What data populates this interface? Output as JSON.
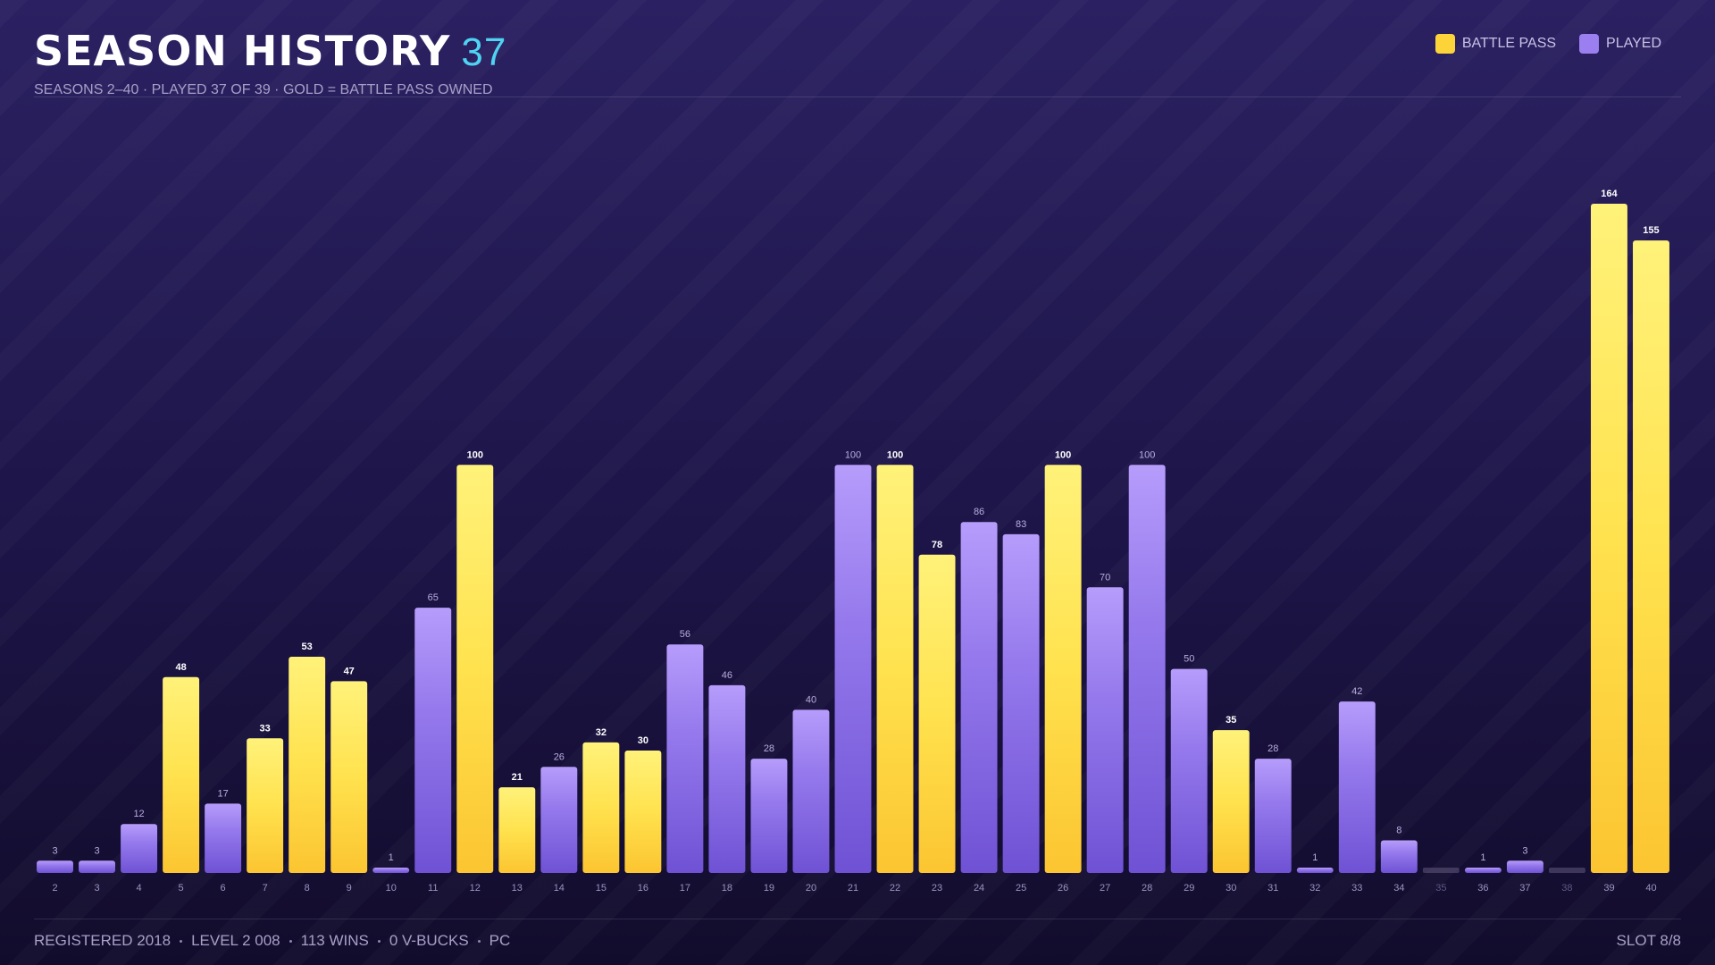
{
  "chart_data": {
    "type": "bar",
    "title": "SEASON HISTORY",
    "title_value": 37,
    "subtitle": "SEASONS 2–40 · PLAYED 37 OF 39 · GOLD = BATTLE PASS OWNED",
    "legend": [
      {
        "name": "BATTLE PASS",
        "color": "#fcd43a"
      },
      {
        "name": "PLAYED",
        "color": "#9b7ff0"
      }
    ],
    "categories": [
      "2",
      "3",
      "4",
      "5",
      "6",
      "7",
      "8",
      "9",
      "10",
      "11",
      "12",
      "13",
      "14",
      "15",
      "16",
      "17",
      "18",
      "19",
      "20",
      "21",
      "22",
      "23",
      "24",
      "25",
      "26",
      "27",
      "28",
      "29",
      "30",
      "31",
      "32",
      "33",
      "34",
      "35",
      "36",
      "37",
      "38",
      "39",
      "40"
    ],
    "values": [
      3,
      3,
      12,
      48,
      17,
      33,
      53,
      47,
      1,
      65,
      100,
      21,
      26,
      32,
      30,
      56,
      46,
      28,
      40,
      100,
      100,
      78,
      86,
      83,
      100,
      70,
      100,
      50,
      35,
      28,
      1,
      42,
      8,
      null,
      1,
      3,
      null,
      164,
      155
    ],
    "battle_pass": [
      false,
      false,
      false,
      true,
      false,
      true,
      true,
      true,
      false,
      false,
      true,
      true,
      false,
      true,
      true,
      false,
      false,
      false,
      false,
      false,
      true,
      true,
      false,
      false,
      true,
      false,
      false,
      false,
      true,
      false,
      false,
      false,
      false,
      false,
      false,
      false,
      false,
      true,
      true
    ],
    "footer": [
      "REGISTERED 2018",
      "LEVEL 2 008",
      "113 WINS",
      "0 V-BUCKS",
      "PC"
    ],
    "slot": "SLOT 8/8"
  }
}
